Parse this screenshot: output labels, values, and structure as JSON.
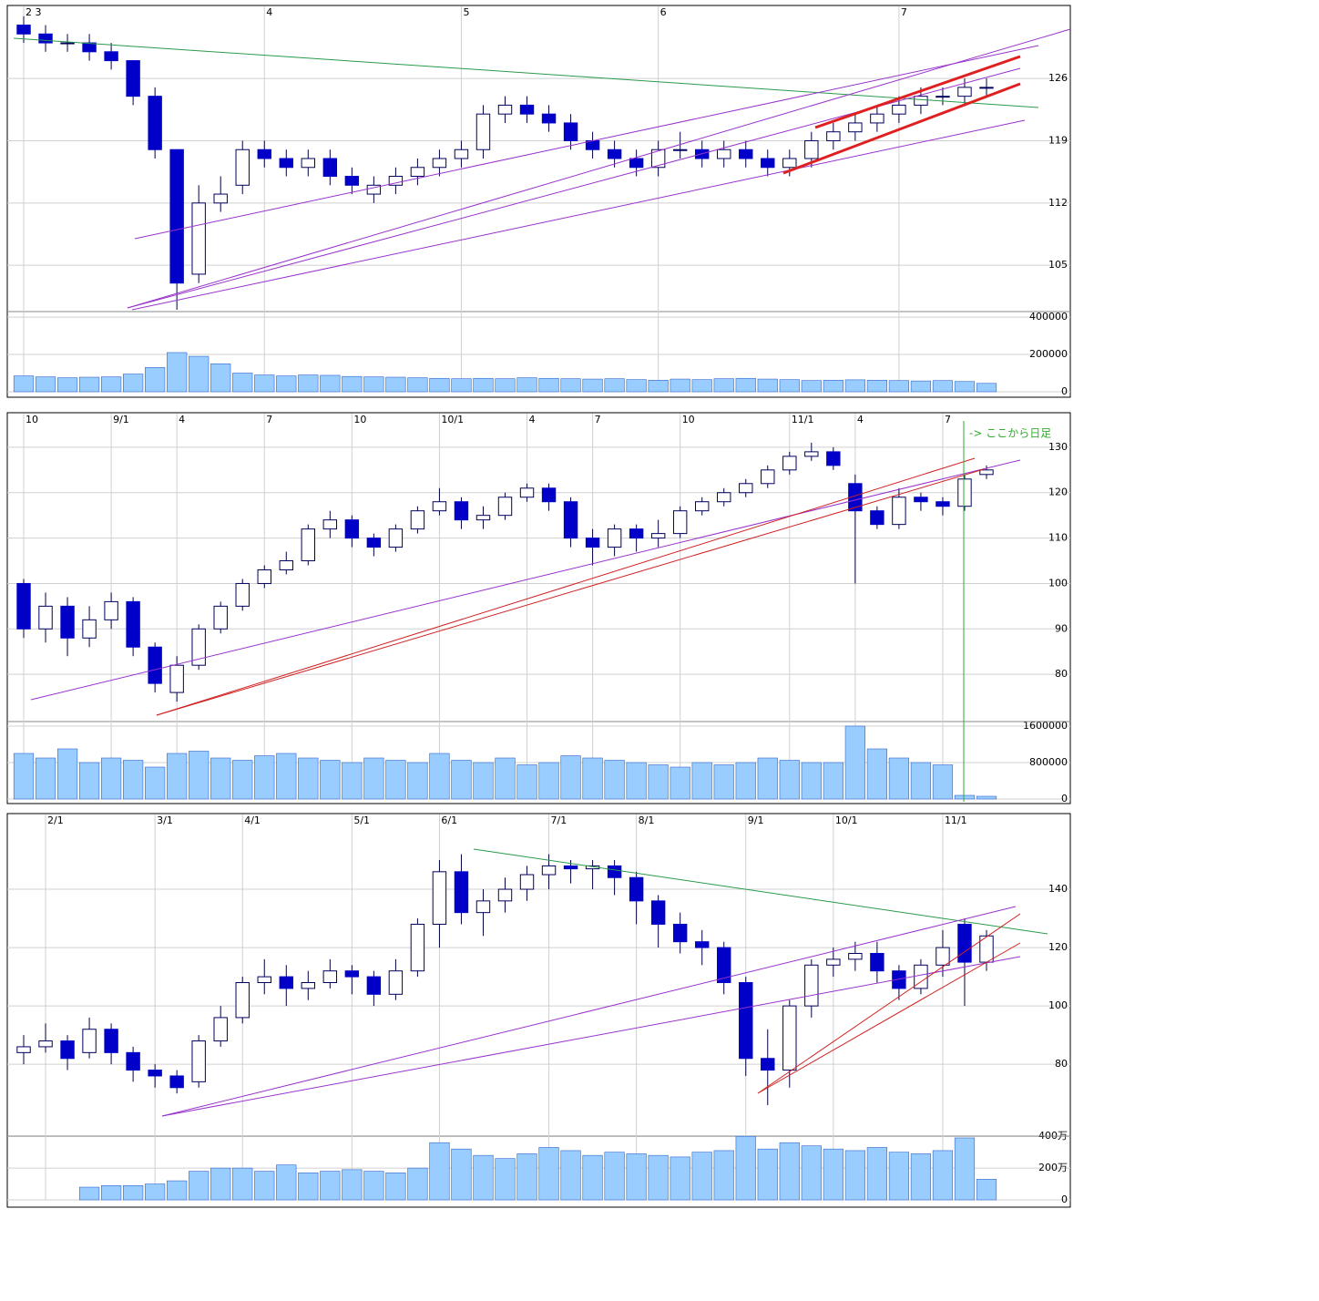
{
  "chart_data": [
    {
      "type": "candlestick",
      "categories": [
        "2 3",
        null,
        null,
        null,
        null,
        null,
        null,
        null,
        null,
        null,
        null,
        "4",
        null,
        null,
        null,
        null,
        null,
        null,
        null,
        null,
        "5",
        null,
        null,
        null,
        null,
        null,
        null,
        null,
        null,
        "6",
        null,
        null,
        null,
        null,
        null,
        null,
        null,
        null,
        null,
        null,
        "7",
        null,
        null,
        null,
        null
      ],
      "open": [
        132,
        131,
        130,
        130,
        129,
        128,
        124,
        118,
        104,
        112,
        114,
        118,
        117,
        116,
        117,
        115,
        113,
        114,
        115,
        116,
        117,
        118,
        122,
        123,
        122,
        121,
        119,
        118,
        117,
        116,
        118,
        118,
        117,
        118,
        117,
        116,
        117,
        119,
        120,
        121,
        122,
        123,
        124,
        124,
        125
      ],
      "high": [
        133,
        132,
        131,
        131,
        130,
        128,
        125,
        118,
        114,
        115,
        119,
        119,
        118,
        118,
        118,
        116,
        115,
        116,
        117,
        118,
        119,
        123,
        124,
        124,
        123,
        122,
        120,
        119,
        118,
        119,
        120,
        119,
        119,
        119,
        118,
        118,
        120,
        121,
        122,
        123,
        124,
        125,
        125,
        126,
        126
      ],
      "low": [
        130,
        129,
        129,
        128,
        127,
        123,
        117,
        100,
        103,
        111,
        113,
        116,
        115,
        115,
        114,
        113,
        112,
        113,
        114,
        115,
        116,
        117,
        121,
        121,
        120,
        118,
        117,
        116,
        115,
        115,
        117,
        116,
        116,
        116,
        115,
        115,
        116,
        118,
        119,
        120,
        121,
        122,
        123,
        123,
        124
      ],
      "close": [
        131,
        130,
        130,
        129,
        128,
        124,
        118,
        103,
        112,
        113,
        118,
        117,
        116,
        117,
        115,
        114,
        114,
        115,
        116,
        117,
        118,
        122,
        123,
        122,
        121,
        119,
        118,
        117,
        116,
        118,
        118,
        117,
        118,
        117,
        116,
        117,
        119,
        120,
        121,
        122,
        123,
        124,
        124,
        125,
        125
      ],
      "volume": [
        85000,
        80000,
        75000,
        78000,
        80000,
        95000,
        130000,
        210000,
        190000,
        150000,
        100000,
        90000,
        85000,
        90000,
        88000,
        82000,
        80000,
        78000,
        75000,
        72000,
        70000,
        72000,
        70000,
        75000,
        72000,
        70000,
        68000,
        70000,
        65000,
        62000,
        68000,
        65000,
        70000,
        72000,
        68000,
        65000,
        60000,
        62000,
        64000,
        62000,
        60000,
        58000,
        60000,
        55000,
        45000
      ],
      "ylim": [
        100,
        134
      ],
      "yticks": [
        105,
        112,
        119,
        126
      ],
      "volume_ylim": [
        0,
        415000
      ],
      "volume_yticks": [
        0,
        200000,
        400000
      ],
      "up_color": "#ffffff",
      "down_color": "#0000c8",
      "volume_color": "#99ccff",
      "grid": true
    },
    {
      "type": "candlestick",
      "categories": [
        "10",
        null,
        null,
        null,
        "9/1",
        null,
        null,
        "4",
        null,
        null,
        null,
        "7",
        null,
        null,
        null,
        "10",
        null,
        null,
        null,
        "10/1",
        null,
        null,
        null,
        "4",
        null,
        null,
        "7",
        null,
        null,
        null,
        "10",
        null,
        null,
        null,
        null,
        "11/1",
        null,
        null,
        "4",
        null,
        null,
        null,
        "7",
        null,
        null
      ],
      "open": [
        100,
        90,
        95,
        88,
        92,
        96,
        86,
        76,
        82,
        90,
        95,
        100,
        103,
        105,
        112,
        114,
        110,
        108,
        112,
        116,
        118,
        114,
        115,
        119,
        121,
        118,
        110,
        108,
        112,
        110,
        111,
        116,
        118,
        120,
        122,
        125,
        128,
        129,
        122,
        116,
        113,
        119,
        118,
        117,
        124
      ],
      "high": [
        101,
        98,
        97,
        95,
        98,
        97,
        87,
        84,
        91,
        96,
        101,
        104,
        107,
        113,
        116,
        115,
        111,
        113,
        117,
        121,
        119,
        117,
        120,
        122,
        122,
        119,
        112,
        113,
        113,
        114,
        117,
        119,
        121,
        123,
        126,
        129,
        131,
        130,
        124,
        117,
        121,
        120,
        119,
        124,
        126
      ],
      "low": [
        88,
        87,
        84,
        86,
        90,
        84,
        76,
        74,
        81,
        89,
        94,
        99,
        102,
        104,
        110,
        108,
        106,
        107,
        111,
        115,
        112,
        112,
        114,
        118,
        116,
        108,
        104,
        106,
        107,
        108,
        110,
        115,
        117,
        119,
        121,
        124,
        127,
        125,
        100,
        112,
        112,
        116,
        115,
        116,
        123
      ],
      "close": [
        90,
        95,
        88,
        92,
        96,
        86,
        78,
        82,
        90,
        95,
        100,
        103,
        105,
        112,
        114,
        110,
        108,
        112,
        116,
        118,
        114,
        115,
        119,
        121,
        118,
        110,
        108,
        112,
        110,
        111,
        116,
        118,
        120,
        122,
        125,
        128,
        129,
        126,
        116,
        113,
        119,
        118,
        117,
        123,
        125
      ],
      "volume": [
        1000000,
        900000,
        1100000,
        800000,
        900000,
        850000,
        700000,
        1000000,
        1050000,
        900000,
        850000,
        950000,
        1000000,
        900000,
        850000,
        800000,
        900000,
        850000,
        800000,
        1000000,
        850000,
        800000,
        900000,
        750000,
        800000,
        950000,
        900000,
        850000,
        800000,
        750000,
        700000,
        800000,
        750000,
        800000,
        900000,
        850000,
        800000,
        800000,
        1600000,
        1100000,
        900000,
        800000,
        750000,
        80000,
        60000
      ],
      "ylim": [
        70,
        137
      ],
      "yticks": [
        80,
        90,
        100,
        110,
        120,
        130
      ],
      "volume_ylim": [
        0,
        1700000
      ],
      "volume_yticks": [
        0,
        800000,
        1600000
      ],
      "annotation": "-> ここから日足",
      "up_color": "#ffffff",
      "down_color": "#0000c8",
      "volume_color": "#99ccff",
      "grid": true
    },
    {
      "type": "candlestick",
      "categories": [
        null,
        "2/1",
        null,
        null,
        null,
        null,
        "3/1",
        null,
        null,
        null,
        "4/1",
        null,
        null,
        null,
        null,
        "5/1",
        null,
        null,
        null,
        "6/1",
        null,
        null,
        null,
        null,
        "7/1",
        null,
        null,
        null,
        "8/1",
        null,
        null,
        null,
        null,
        "9/1",
        null,
        null,
        null,
        "10/1",
        null,
        null,
        null,
        null,
        "11/1",
        null,
        null
      ],
      "open": [
        84,
        86,
        88,
        84,
        92,
        84,
        78,
        76,
        74,
        88,
        96,
        108,
        110,
        106,
        108,
        112,
        110,
        104,
        112,
        128,
        146,
        132,
        136,
        140,
        145,
        148,
        147,
        148,
        144,
        136,
        128,
        122,
        120,
        108,
        82,
        78,
        100,
        114,
        116,
        118,
        112,
        106,
        114,
        128,
        115
      ],
      "high": [
        90,
        94,
        90,
        96,
        94,
        86,
        80,
        78,
        90,
        100,
        110,
        116,
        114,
        112,
        116,
        114,
        112,
        116,
        130,
        150,
        152,
        140,
        144,
        148,
        152,
        150,
        150,
        150,
        146,
        138,
        132,
        126,
        122,
        110,
        92,
        102,
        116,
        120,
        122,
        122,
        114,
        116,
        126,
        130,
        126
      ],
      "low": [
        80,
        84,
        78,
        82,
        80,
        74,
        72,
        70,
        72,
        86,
        94,
        104,
        100,
        102,
        106,
        104,
        100,
        102,
        110,
        120,
        128,
        124,
        132,
        136,
        140,
        142,
        140,
        138,
        128,
        120,
        118,
        114,
        104,
        76,
        66,
        72,
        96,
        110,
        112,
        108,
        102,
        104,
        110,
        100,
        112
      ],
      "close": [
        86,
        88,
        82,
        92,
        84,
        78,
        76,
        72,
        88,
        96,
        108,
        110,
        106,
        108,
        112,
        110,
        104,
        112,
        128,
        146,
        132,
        136,
        140,
        145,
        148,
        147,
        148,
        144,
        136,
        128,
        122,
        120,
        108,
        82,
        78,
        100,
        114,
        116,
        118,
        112,
        106,
        114,
        120,
        115,
        124
      ],
      "volume": [
        0,
        0,
        0,
        800000,
        900000,
        900000,
        1000000,
        1200000,
        1800000,
        2000000,
        2000000,
        1800000,
        2200000,
        1700000,
        1800000,
        1900000,
        1800000,
        1700000,
        2000000,
        3600000,
        3200000,
        2800000,
        2600000,
        2900000,
        3300000,
        3100000,
        2800000,
        3000000,
        2900000,
        2800000,
        2700000,
        3000000,
        3100000,
        4000000,
        3200000,
        3600000,
        3400000,
        3200000,
        3100000,
        3300000,
        3000000,
        2900000,
        3100000,
        3900000,
        1300000
      ],
      "ylim": [
        56,
        165
      ],
      "yticks": [
        80,
        100,
        120,
        140
      ],
      "volume_ylim": [
        0,
        4300000
      ],
      "volume_yticks": [
        0,
        {
          "value": 2000000,
          "label": "200万"
        },
        {
          "value": 4000000,
          "label": "400万"
        }
      ],
      "up_color": "#ffffff",
      "down_color": "#0000c8",
      "volume_color": "#99ccff",
      "grid": true
    }
  ]
}
